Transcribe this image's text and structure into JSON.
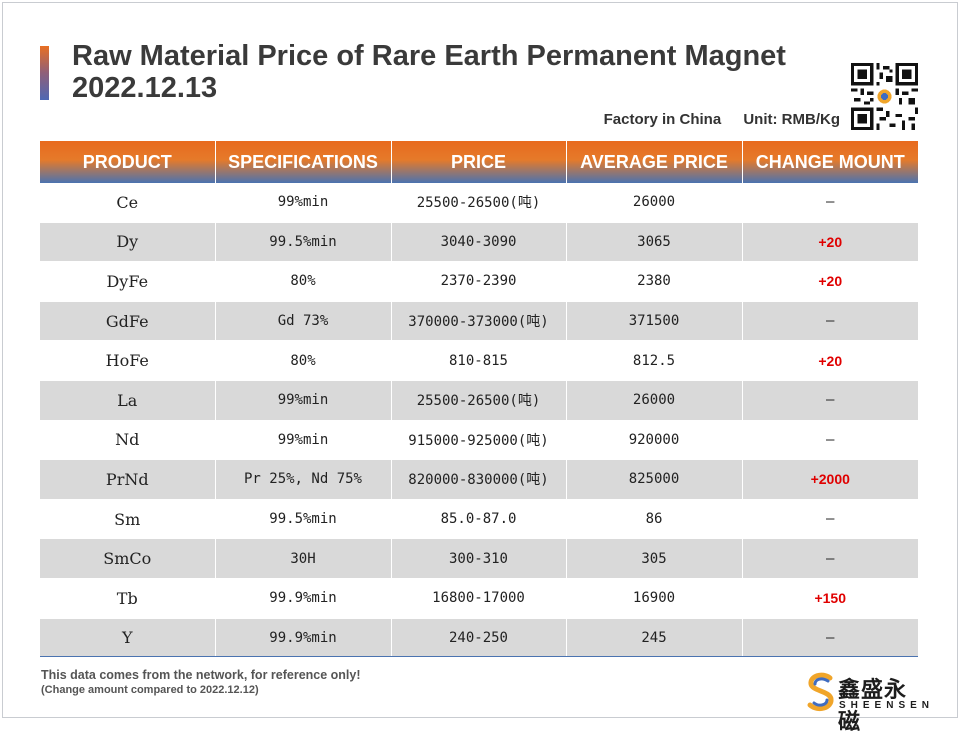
{
  "title": {
    "line1": "Raw Material Price of Rare Earth Permanent Magnet",
    "line2": "2022.12.13"
  },
  "meta": {
    "origin": "Factory in China",
    "unit": "Unit: RMB/Kg"
  },
  "colors": {
    "header_orange": "#e86a1e",
    "header_blue": "#4b73b0",
    "row_alt": "#d9d9d9",
    "change_up": "#e00000"
  },
  "table": {
    "headers": [
      "PRODUCT",
      "SPECIFICATIONS",
      "PRICE",
      "AVERAGE PRICE",
      "CHANGE MOUNT"
    ],
    "rows": [
      {
        "product": "Ce",
        "spec": "99%min",
        "price": "25500-26500(吨)",
        "avg": "26000",
        "change": "–",
        "up": false
      },
      {
        "product": "Dy",
        "spec": "99.5%min",
        "price": "3040-3090",
        "avg": "3065",
        "change": "+20",
        "up": true
      },
      {
        "product": "DyFe",
        "spec": "80%",
        "price": "2370-2390",
        "avg": "2380",
        "change": "+20",
        "up": true
      },
      {
        "product": "GdFe",
        "spec": "Gd 73%",
        "price": "370000-373000(吨)",
        "avg": "371500",
        "change": "–",
        "up": false
      },
      {
        "product": "HoFe",
        "spec": "80%",
        "price": "810-815",
        "avg": "812.5",
        "change": "+20",
        "up": true
      },
      {
        "product": "La",
        "spec": "99%min",
        "price": "25500-26500(吨)",
        "avg": "26000",
        "change": "–",
        "up": false
      },
      {
        "product": "Nd",
        "spec": "99%min",
        "price": "915000-925000(吨)",
        "avg": "920000",
        "change": "–",
        "up": false
      },
      {
        "product": "PrNd",
        "spec": "Pr 25%, Nd 75%",
        "price": "820000-830000(吨)",
        "avg": "825000",
        "change": "+2000",
        "up": true
      },
      {
        "product": "Sm",
        "spec": "99.5%min",
        "price": "85.0-87.0",
        "avg": "86",
        "change": "–",
        "up": false
      },
      {
        "product": "SmCo",
        "spec": "30H",
        "price": "300-310",
        "avg": "305",
        "change": "–",
        "up": false
      },
      {
        "product": "Tb",
        "spec": "99.9%min",
        "price": "16800-17000",
        "avg": "16900",
        "change": "+150",
        "up": true
      },
      {
        "product": "Y",
        "spec": "99.9%min",
        "price": "240-250",
        "avg": "245",
        "change": "–",
        "up": false
      }
    ]
  },
  "footnote": {
    "line1": "This data comes from the network, for reference only!",
    "line2": "(Change amount compared to 2022.12.12)"
  },
  "logo": {
    "icon": "sheensen-s-logo-icon",
    "cn": "鑫盛永磁",
    "en": "SHEENSEN"
  },
  "qr_icon": "qr-code-icon"
}
